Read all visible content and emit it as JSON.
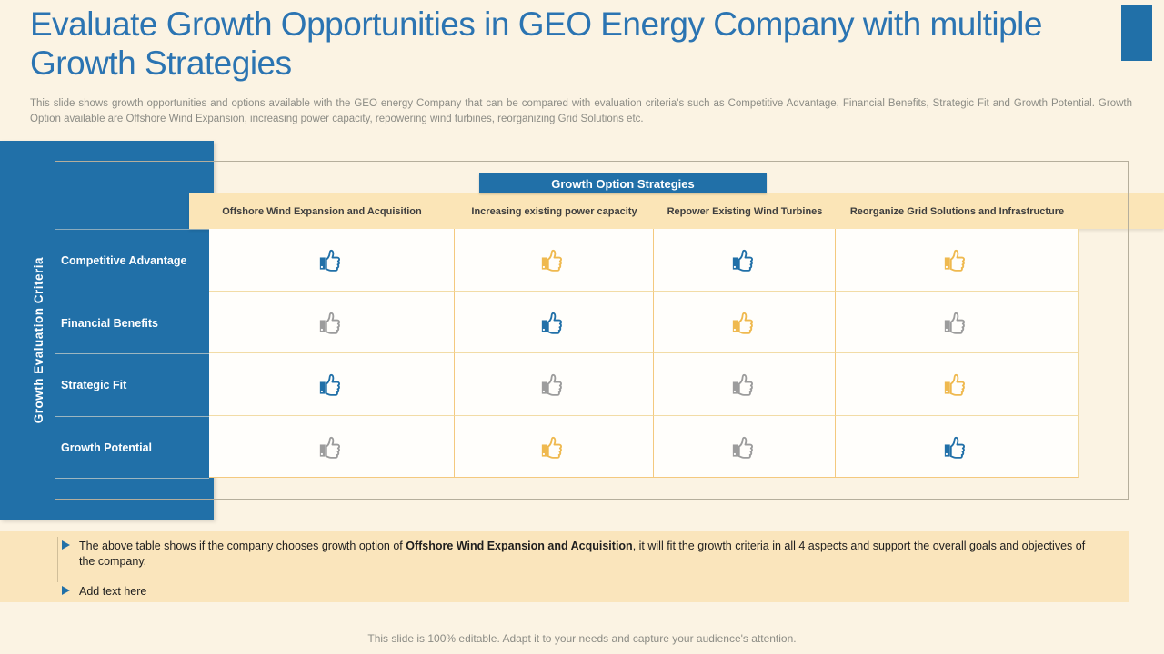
{
  "slide": {
    "title_line1": "Evaluate Growth Opportunities in GEO Energy Company with multiple",
    "title_line2": "Growth Strategies",
    "subtitle": "This slide shows growth opportunities and options available with the GEO energy Company that can be compared with evaluation criteria's such as Competitive Advantage, Financial Benefits, Strategic Fit and Growth Potential. Growth Option available are Offshore Wind Expansion, increasing power capacity, repowering wind turbines, reorganizing Grid Solutions etc.",
    "footer": "This slide is 100% editable. Adapt it to your needs and capture your audience's attention."
  },
  "table": {
    "strategies_header": "Growth Option Strategies",
    "criteria_axis_label": "Growth Evaluation Criteria",
    "columns": [
      "Offshore Wind Expansion and Acquisition",
      "Increasing existing power capacity",
      "Repower Existing Wind Turbines",
      "Reorganize Grid Solutions and Infrastructure"
    ],
    "rows": [
      {
        "label": "Competitive Advantage",
        "ratings": [
          "blue",
          "yellow",
          "blue",
          "yellow"
        ]
      },
      {
        "label": "Financial Benefits",
        "ratings": [
          "gray",
          "blue",
          "yellow",
          "gray"
        ]
      },
      {
        "label": "Strategic Fit",
        "ratings": [
          "blue",
          "gray",
          "gray",
          "yellow"
        ]
      },
      {
        "label": "Growth Potential",
        "ratings": [
          "gray",
          "yellow",
          "gray",
          "blue"
        ]
      }
    ]
  },
  "notes": {
    "bullet1_prefix": "The above table shows if the company chooses growth option of ",
    "bullet1_bold": "Offshore Wind Expansion and Acquisition",
    "bullet1_suffix": ", it will fit the growth criteria in all 4 aspects and support the overall goals and objectives of the company.",
    "bullet2": "Add text here"
  },
  "colors": {
    "accent_blue": "#2170A8",
    "title_blue": "#2B74B2",
    "thumb_yellow": "#EFB94F",
    "thumb_gray": "#9C9C9C",
    "band_tan": "#FAE5BC",
    "header_tan": "#FBE5B7",
    "page_bg": "#FBF3E3"
  }
}
